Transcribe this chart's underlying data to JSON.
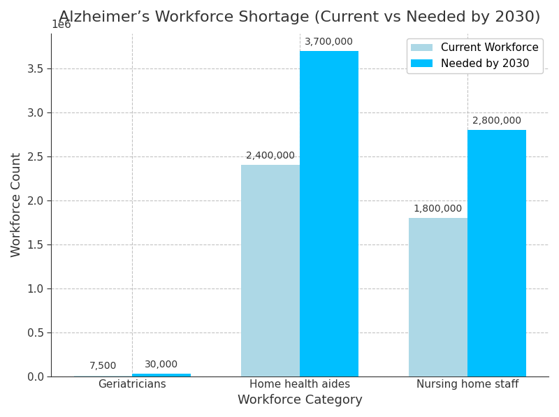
{
  "title": "Alzheimer’s Workforce Shortage (Current vs Needed by 2030)",
  "xlabel": "Workforce Category",
  "ylabel": "Workforce Count",
  "categories": [
    "Geriatricians",
    "Home health aides",
    "Nursing home staff"
  ],
  "current_workforce": [
    7500,
    2400000,
    1800000
  ],
  "needed_by_2030": [
    30000,
    3700000,
    2800000
  ],
  "current_color": "#ADD8E6",
  "needed_color": "#00BFFF",
  "bar_width": 0.35,
  "ylim": [
    0,
    3900000
  ],
  "yticks": [
    0,
    500000,
    1000000,
    1500000,
    2000000,
    2500000,
    3000000,
    3500000
  ],
  "title_fontsize": 16,
  "label_fontsize": 13,
  "tick_fontsize": 11,
  "annotation_fontsize": 10,
  "legend_labels": [
    "Current Workforce",
    "Needed by 2030"
  ],
  "background_color": "#ffffff",
  "grid_color": "#aaaaaa",
  "grid_style": "--",
  "grid_alpha": 0.7
}
